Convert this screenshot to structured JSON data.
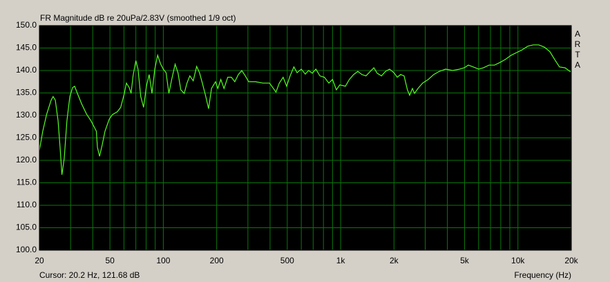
{
  "chart_data": {
    "type": "line",
    "title": "FR Magnitude dB re 20uPa/2.83V (smoothed 1/9 oct)",
    "xlabel": "Frequency (Hz)",
    "cursor": "Cursor: 20.2 Hz, 121.68 dB",
    "brand": "ARTA",
    "xscale": "log",
    "grid": true,
    "background": "#000000",
    "grid_color": "#0a7a0a",
    "xlim": [
      20,
      20000
    ],
    "ylim": [
      100,
      150
    ],
    "xticks": [
      20,
      50,
      100,
      200,
      500,
      {
        "value": 1000,
        "label": "1k"
      },
      {
        "value": 2000,
        "label": "2k"
      },
      {
        "value": 5000,
        "label": "5k"
      },
      {
        "value": 10000,
        "label": "10k"
      },
      {
        "value": 20000,
        "label": "20k"
      }
    ],
    "x_minor_grid": [
      30,
      40,
      60,
      70,
      80,
      90,
      300,
      400,
      600,
      700,
      800,
      900,
      3000,
      4000,
      6000,
      7000,
      8000,
      9000
    ],
    "yticks": [
      {
        "value": 100,
        "label": "100.0"
      },
      {
        "value": 105,
        "label": "105.0"
      },
      {
        "value": 110,
        "label": "110.0"
      },
      {
        "value": 115,
        "label": "115.0"
      },
      {
        "value": 120,
        "label": "120.0"
      },
      {
        "value": 125,
        "label": "125.0"
      },
      {
        "value": 130,
        "label": "130.0"
      },
      {
        "value": 135,
        "label": "135.0"
      },
      {
        "value": 140,
        "label": "140.0"
      },
      {
        "value": 145,
        "label": "145.0"
      },
      {
        "value": 150,
        "label": "150.0"
      }
    ],
    "series": [
      {
        "color": "#55ff22",
        "x": [
          20,
          20.9,
          22,
          23.3,
          23.9,
          24.6,
          25.5,
          26.2,
          26.8,
          27.6,
          28.6,
          29.7,
          30.8,
          31.6,
          32.7,
          34.6,
          36.9,
          39.1,
          41.9,
          42.5,
          43.7,
          45.2,
          46.9,
          49.6,
          51.7,
          55,
          57.5,
          60.3,
          61.9,
          64.2,
          65.8,
          67.5,
          70,
          72,
          74.6,
          77.4,
          80.3,
          83.2,
          86.3,
          89.5,
          92.9,
          96.4,
          100,
          103.7,
          107.5,
          111.5,
          116.6,
          121,
          125.5,
          131.2,
          136,
          141.1,
          147.5,
          154.2,
          160,
          166,
          173.6,
          180,
          187,
          197,
          203,
          211,
          220,
          231,
          242,
          253,
          265,
          277,
          290,
          303,
          331,
          364,
          397,
          432,
          451,
          474,
          496,
          519,
          545,
          568,
          600,
          632,
          660,
          692,
          725,
          764,
          810,
          858,
          900,
          946,
          990,
          1064,
          1120,
          1184,
          1250,
          1318,
          1390,
          1469,
          1540,
          1607,
          1700,
          1790,
          1888,
          2000,
          2085,
          2180,
          2280,
          2380,
          2450,
          2540,
          2610,
          2730,
          2900,
          3120,
          3350,
          3600,
          3910,
          4280,
          4680,
          4980,
          5250,
          5590,
          6010,
          6390,
          6870,
          7380,
          7930,
          8520,
          9160,
          9840,
          10570,
          11350,
          12190,
          13100,
          14090,
          15130,
          16260,
          17150,
          18440,
          19810
        ],
        "values": [
          122.2,
          126.5,
          130.3,
          133.4,
          134.2,
          133.4,
          128.8,
          122.6,
          116.8,
          120.3,
          128.8,
          134.2,
          136.2,
          136.5,
          135,
          132.6,
          130.3,
          128.8,
          126.5,
          122.9,
          120.9,
          123.4,
          126.5,
          129.2,
          130.2,
          130.8,
          131.8,
          134.9,
          137.2,
          136.2,
          134.9,
          138.8,
          142.2,
          140.3,
          134.2,
          131.8,
          136.5,
          139.1,
          134.9,
          140.3,
          143.4,
          141.5,
          140.3,
          139.5,
          134.9,
          138,
          141.4,
          139.5,
          135.7,
          134.9,
          137.2,
          138.8,
          137.7,
          140.9,
          139.5,
          137.2,
          134.2,
          131.5,
          136,
          137.5,
          136,
          138,
          136,
          138.5,
          138.5,
          137.5,
          139.1,
          140,
          138.8,
          137.5,
          137.5,
          137.2,
          137.2,
          135.2,
          137.2,
          138.5,
          136.5,
          138.8,
          140.8,
          139.5,
          140.3,
          139.2,
          140,
          139.4,
          140.3,
          138.8,
          138.5,
          137.2,
          138,
          135.7,
          136.8,
          136.5,
          138,
          139.1,
          139.8,
          139.1,
          138.8,
          139.8,
          140.6,
          139.4,
          138.8,
          139.8,
          140.3,
          139.5,
          138.5,
          139.1,
          138.8,
          135.7,
          134.5,
          136,
          134.9,
          136,
          137.2,
          138,
          139.1,
          139.8,
          140.3,
          140,
          140.3,
          140.6,
          141.2,
          140.8,
          140.3,
          140.6,
          141.2,
          141.2,
          141.8,
          142.5,
          143.4,
          144,
          144.6,
          145.4,
          145.7,
          145.7,
          145.2,
          144.2,
          142.2,
          140.8,
          140.6,
          139.7
        ]
      }
    ]
  }
}
